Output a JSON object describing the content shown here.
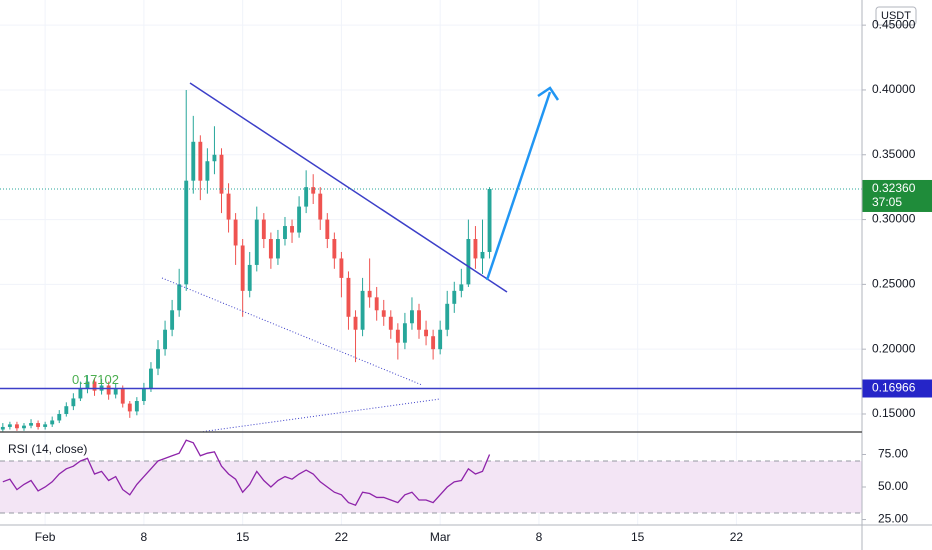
{
  "chart_data": [
    {
      "type": "candlestick",
      "unit": "USDT",
      "x": [
        -2,
        -1.5,
        -1,
        -0.5,
        0,
        0.5,
        1,
        1.5,
        2,
        2.5,
        3,
        3.5,
        4,
        4.5,
        5,
        5.5,
        6,
        6.5,
        7,
        7.5,
        8,
        8.5,
        9,
        9.5,
        10,
        10.5,
        11,
        11.5,
        12,
        12.5,
        13,
        13.5,
        14,
        14.5,
        15,
        15.5,
        16,
        16.5,
        17,
        17.5,
        18,
        18.5,
        19,
        19.5,
        20,
        20.5,
        21,
        21.5,
        22,
        22.5,
        23,
        23.5,
        24,
        24.5,
        25,
        25.5,
        26,
        26.5,
        27,
        27.5,
        28,
        28.5,
        29,
        29.5,
        30,
        30.5,
        31,
        31.5,
        32,
        32.5
      ],
      "open": [
        0.138,
        0.14,
        0.142,
        0.139,
        0.141,
        0.143,
        0.14,
        0.142,
        0.145,
        0.15,
        0.156,
        0.162,
        0.17,
        0.175,
        0.168,
        0.172,
        0.165,
        0.17,
        0.158,
        0.152,
        0.16,
        0.17,
        0.185,
        0.2,
        0.215,
        0.23,
        0.25,
        0.33,
        0.36,
        0.33,
        0.345,
        0.35,
        0.32,
        0.3,
        0.28,
        0.245,
        0.265,
        0.3,
        0.285,
        0.27,
        0.285,
        0.295,
        0.29,
        0.31,
        0.325,
        0.32,
        0.3,
        0.285,
        0.27,
        0.255,
        0.225,
        0.215,
        0.245,
        0.24,
        0.23,
        0.225,
        0.215,
        0.205,
        0.22,
        0.23,
        0.215,
        0.21,
        0.2,
        0.215,
        0.235,
        0.245,
        0.25,
        0.285,
        0.27,
        0.275
      ],
      "high": [
        0.143,
        0.144,
        0.144,
        0.143,
        0.146,
        0.145,
        0.144,
        0.148,
        0.153,
        0.159,
        0.166,
        0.175,
        0.18,
        0.178,
        0.177,
        0.175,
        0.174,
        0.172,
        0.16,
        0.163,
        0.174,
        0.19,
        0.207,
        0.222,
        0.238,
        0.262,
        0.4,
        0.38,
        0.365,
        0.355,
        0.372,
        0.355,
        0.328,
        0.305,
        0.285,
        0.275,
        0.31,
        0.305,
        0.29,
        0.292,
        0.302,
        0.3,
        0.318,
        0.338,
        0.335,
        0.325,
        0.305,
        0.29,
        0.275,
        0.26,
        0.23,
        0.255,
        0.27,
        0.248,
        0.238,
        0.23,
        0.22,
        0.228,
        0.24,
        0.235,
        0.222,
        0.215,
        0.222,
        0.245,
        0.252,
        0.262,
        0.3,
        0.295,
        0.3,
        0.325
      ],
      "low": [
        0.136,
        0.138,
        0.137,
        0.137,
        0.139,
        0.138,
        0.138,
        0.14,
        0.143,
        0.148,
        0.153,
        0.16,
        0.166,
        0.164,
        0.165,
        0.161,
        0.162,
        0.155,
        0.147,
        0.149,
        0.157,
        0.167,
        0.18,
        0.195,
        0.21,
        0.225,
        0.245,
        0.32,
        0.315,
        0.32,
        0.335,
        0.305,
        0.29,
        0.265,
        0.225,
        0.24,
        0.26,
        0.278,
        0.262,
        0.265,
        0.28,
        0.282,
        0.286,
        0.305,
        0.312,
        0.292,
        0.278,
        0.262,
        0.24,
        0.215,
        0.19,
        0.21,
        0.232,
        0.222,
        0.218,
        0.208,
        0.192,
        0.2,
        0.215,
        0.208,
        0.203,
        0.192,
        0.196,
        0.21,
        0.228,
        0.24,
        0.248,
        0.262,
        0.258,
        0.27
      ],
      "close": [
        0.14,
        0.142,
        0.139,
        0.141,
        0.143,
        0.14,
        0.142,
        0.145,
        0.15,
        0.156,
        0.162,
        0.17,
        0.175,
        0.168,
        0.172,
        0.165,
        0.17,
        0.158,
        0.152,
        0.16,
        0.17,
        0.185,
        0.2,
        0.215,
        0.23,
        0.25,
        0.33,
        0.36,
        0.33,
        0.345,
        0.35,
        0.32,
        0.3,
        0.28,
        0.245,
        0.265,
        0.3,
        0.285,
        0.27,
        0.285,
        0.295,
        0.29,
        0.31,
        0.325,
        0.32,
        0.3,
        0.285,
        0.27,
        0.255,
        0.225,
        0.215,
        0.245,
        0.24,
        0.23,
        0.225,
        0.215,
        0.205,
        0.22,
        0.23,
        0.215,
        0.21,
        0.2,
        0.215,
        0.235,
        0.245,
        0.25,
        0.285,
        0.27,
        0.275,
        0.3236
      ],
      "up_color": "#26a69a",
      "down_color": "#ef5350",
      "xlim": [
        -2.2,
        58.9
      ],
      "xticks": [
        {
          "value": 1,
          "label": "Feb"
        },
        8,
        15,
        22,
        {
          "value": 29,
          "label": "Mar"
        },
        {
          "value": 36,
          "label": "8"
        },
        {
          "value": 43,
          "label": "15"
        },
        {
          "value": 50,
          "label": "22"
        }
      ],
      "ylim": [
        0.1361,
        0.4694
      ],
      "yticks": [
        {
          "value": 0.15,
          "label": "0.15000"
        },
        {
          "value": 0.2,
          "label": "0.20000"
        },
        {
          "value": 0.25,
          "label": "0.25000"
        },
        {
          "value": 0.3,
          "label": "0.30000"
        },
        {
          "value": 0.35,
          "label": "0.35000"
        },
        {
          "value": 0.4,
          "label": "0.40000"
        },
        {
          "value": 0.45,
          "label": "0.45000"
        }
      ],
      "grid": true,
      "current_price": {
        "value": 0.3236,
        "label": "0.32360"
      },
      "countdown": "37:05",
      "hline": {
        "value": 0.16966,
        "label": "0.16966"
      },
      "annotation": "0.17102"
    },
    {
      "type": "line",
      "title": "RSI (14, close)",
      "color": "#8e24aa",
      "values": [
        54,
        56,
        48,
        52,
        55,
        47,
        50,
        54,
        60,
        64,
        66,
        70,
        72,
        60,
        62,
        55,
        58,
        48,
        44,
        52,
        58,
        64,
        70,
        72,
        74,
        76,
        86,
        84,
        74,
        76,
        77,
        66,
        60,
        56,
        46,
        52,
        62,
        55,
        50,
        55,
        58,
        56,
        60,
        63,
        60,
        54,
        50,
        46,
        44,
        38,
        36,
        46,
        45,
        42,
        42,
        40,
        38,
        44,
        46,
        40,
        40,
        38,
        44,
        50,
        54,
        55,
        64,
        60,
        62,
        75
      ],
      "ylim": [
        20.8,
        89.2
      ],
      "yticks": [
        {
          "value": 25,
          "label": "25.00"
        },
        {
          "value": 50,
          "label": "50.00"
        },
        {
          "value": 75,
          "label": "75.00"
        }
      ],
      "band": [
        30,
        70
      ],
      "band_color": "#f3e5f5"
    }
  ]
}
